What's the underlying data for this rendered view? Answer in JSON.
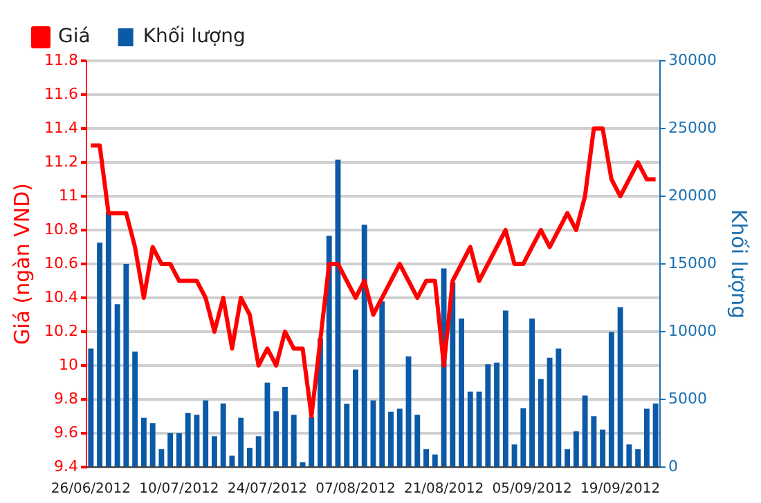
{
  "chart_data": {
    "type": "bar",
    "ylabel": "Giá (ngàn VND)",
    "y2label": "Khối lượng",
    "legend": "top left",
    "grid": "y",
    "marker": "none",
    "categories": [
      "26/06/2012",
      null,
      null,
      null,
      null,
      null,
      null,
      null,
      null,
      null,
      "10/07/2012",
      null,
      null,
      null,
      null,
      null,
      null,
      null,
      null,
      null,
      "24/07/2012",
      null,
      null,
      null,
      null,
      null,
      null,
      null,
      null,
      null,
      "07/08/2012",
      null,
      null,
      null,
      null,
      null,
      null,
      null,
      null,
      null,
      "21/08/2012",
      null,
      null,
      null,
      null,
      null,
      null,
      null,
      null,
      null,
      "05/09/2012",
      null,
      null,
      null,
      null,
      null,
      null,
      null,
      null,
      null,
      "19/09/2012",
      null,
      null,
      null,
      null
    ],
    "series": [
      {
        "name": "Giá",
        "type": "line",
        "color": "#ff0000",
        "axis": "y",
        "values": [
          11.3,
          11.3,
          10.9,
          10.9,
          10.9,
          10.7,
          10.4,
          10.7,
          10.6,
          10.6,
          10.5,
          10.5,
          10.5,
          10.4,
          10.2,
          10.4,
          10.1,
          10.4,
          10.3,
          10.0,
          10.1,
          10.0,
          10.2,
          10.1,
          10.1,
          9.7,
          10.15,
          10.6,
          10.6,
          10.5,
          10.4,
          10.5,
          10.3,
          10.4,
          10.5,
          10.6,
          10.5,
          10.4,
          10.5,
          10.5,
          10.0,
          10.5,
          10.6,
          10.7,
          10.5,
          10.6,
          10.7,
          10.8,
          10.6,
          10.6,
          10.7,
          10.8,
          10.7,
          10.8,
          10.9,
          10.8,
          11.0,
          11.4,
          11.4,
          11.1,
          11.0,
          11.1,
          11.2,
          11.1,
          11.1
        ]
      },
      {
        "name": "Khối lượng",
        "color": "#0b5aa8",
        "axis": "y2",
        "values": [
          8750,
          16570,
          18820,
          12030,
          15000,
          8530,
          3640,
          3250,
          1320,
          2500,
          2500,
          3990,
          3860,
          4920,
          2280,
          4700,
          840,
          3640,
          1420,
          2280,
          6240,
          4120,
          5920,
          3860,
          350,
          3700,
          9490,
          17080,
          22710,
          4670,
          7210,
          17890,
          4920,
          12230,
          4090,
          4310,
          8170,
          3860,
          1320,
          930,
          14670,
          13640,
          10970,
          5570,
          5570,
          7590,
          7720,
          11550,
          1670,
          4340,
          10970,
          6500,
          8080,
          8750,
          1320,
          2640,
          5280,
          3760,
          2770,
          9970,
          11810,
          1670,
          1320,
          4310,
          4700
        ]
      }
    ],
    "ylim": [
      9.4,
      11.8
    ],
    "yticks": [
      9.4,
      9.6,
      9.8,
      10,
      10.2,
      10.4,
      10.6,
      10.8,
      11,
      11.2,
      11.4,
      11.6,
      11.8
    ],
    "y2lim": [
      0,
      30000
    ],
    "y2ticks": [
      0,
      5000,
      10000,
      15000,
      20000,
      25000,
      30000
    ]
  }
}
